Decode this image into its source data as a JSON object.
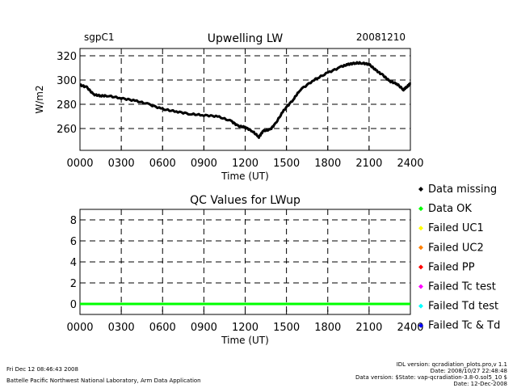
{
  "header": {
    "site": "sgpC1",
    "date": "20081210"
  },
  "chart_data": [
    {
      "type": "line",
      "title": "Upwelling LW",
      "xlabel": "Time (UT)",
      "ylabel": "W/m2",
      "xlim": [
        0,
        2400
      ],
      "ylim": [
        242,
        326
      ],
      "xticks": [
        0,
        300,
        600,
        900,
        1200,
        1500,
        1800,
        2100,
        2400
      ],
      "xtick_labels": [
        "0000",
        "0300",
        "0600",
        "0900",
        "1200",
        "1500",
        "1800",
        "2100",
        "2400"
      ],
      "yticks": [
        260,
        280,
        300,
        320
      ],
      "ytick_labels": [
        "260",
        "280",
        "300",
        "320"
      ],
      "grid": "dashed",
      "series": [
        {
          "name": "LWup",
          "color": "#000000",
          "x": [
            0,
            50,
            100,
            150,
            200,
            300,
            400,
            500,
            600,
            700,
            800,
            900,
            1000,
            1100,
            1150,
            1200,
            1250,
            1300,
            1330,
            1380,
            1420,
            1480,
            1550,
            1600,
            1700,
            1800,
            1900,
            1950,
            2000,
            2050,
            2100,
            2150,
            2200,
            2250,
            2300,
            2350,
            2380,
            2400
          ],
          "y": [
            296,
            294,
            288,
            287,
            287,
            285,
            283,
            280,
            276,
            274,
            272,
            271,
            270,
            266,
            262,
            261,
            258,
            253,
            258,
            259,
            264,
            275,
            284,
            292,
            300,
            306,
            311,
            313,
            314,
            314,
            313,
            308,
            304,
            299,
            297,
            292,
            295,
            297
          ]
        }
      ]
    },
    {
      "type": "line",
      "title": "QC Values for LWup",
      "xlabel": "Time (UT)",
      "ylabel": "",
      "xlim": [
        0,
        2400
      ],
      "ylim": [
        -1,
        9
      ],
      "xticks": [
        0,
        300,
        600,
        900,
        1200,
        1500,
        1800,
        2100,
        2400
      ],
      "xtick_labels": [
        "0000",
        "0300",
        "0600",
        "0900",
        "1200",
        "1500",
        "1800",
        "2100",
        "2400"
      ],
      "yticks": [
        0,
        2,
        4,
        6,
        8
      ],
      "ytick_labels": [
        "0",
        "2",
        "4",
        "6",
        "8"
      ],
      "grid": "dashed",
      "series": [
        {
          "name": "Data OK",
          "color": "#00ff00",
          "x": [
            0,
            2400
          ],
          "y": [
            0,
            0
          ]
        }
      ],
      "legend": [
        {
          "label": "Data missing",
          "color": "#000000"
        },
        {
          "label": "Data OK",
          "color": "#00ff00"
        },
        {
          "label": "Failed UC1",
          "color": "#ffff00"
        },
        {
          "label": "Failed UC2",
          "color": "#ff8000"
        },
        {
          "label": "Failed PP",
          "color": "#ff0000"
        },
        {
          "label": "Failed Tc test",
          "color": "#ff00ff"
        },
        {
          "label": "Failed Td test",
          "color": "#00ffff"
        },
        {
          "label": "Failed Tc & Td",
          "color": "#0000ff"
        }
      ]
    }
  ],
  "footer": {
    "left_line1": "Fri Dec 12 08:46:43 2008",
    "left_line2": "Battelle Pacific Northwest National Laboratory, Arm Data Application",
    "right_line1": "IDL version: qcradiation_plots.pro,v 1.1",
    "right_line2": "Date: 2008/10/27 22:48:48",
    "right_line3": "Data version: $State: vap-qcradiation-3.8-0.sol5_10 $",
    "right_line4": "Date: 12-Dec-2008"
  }
}
